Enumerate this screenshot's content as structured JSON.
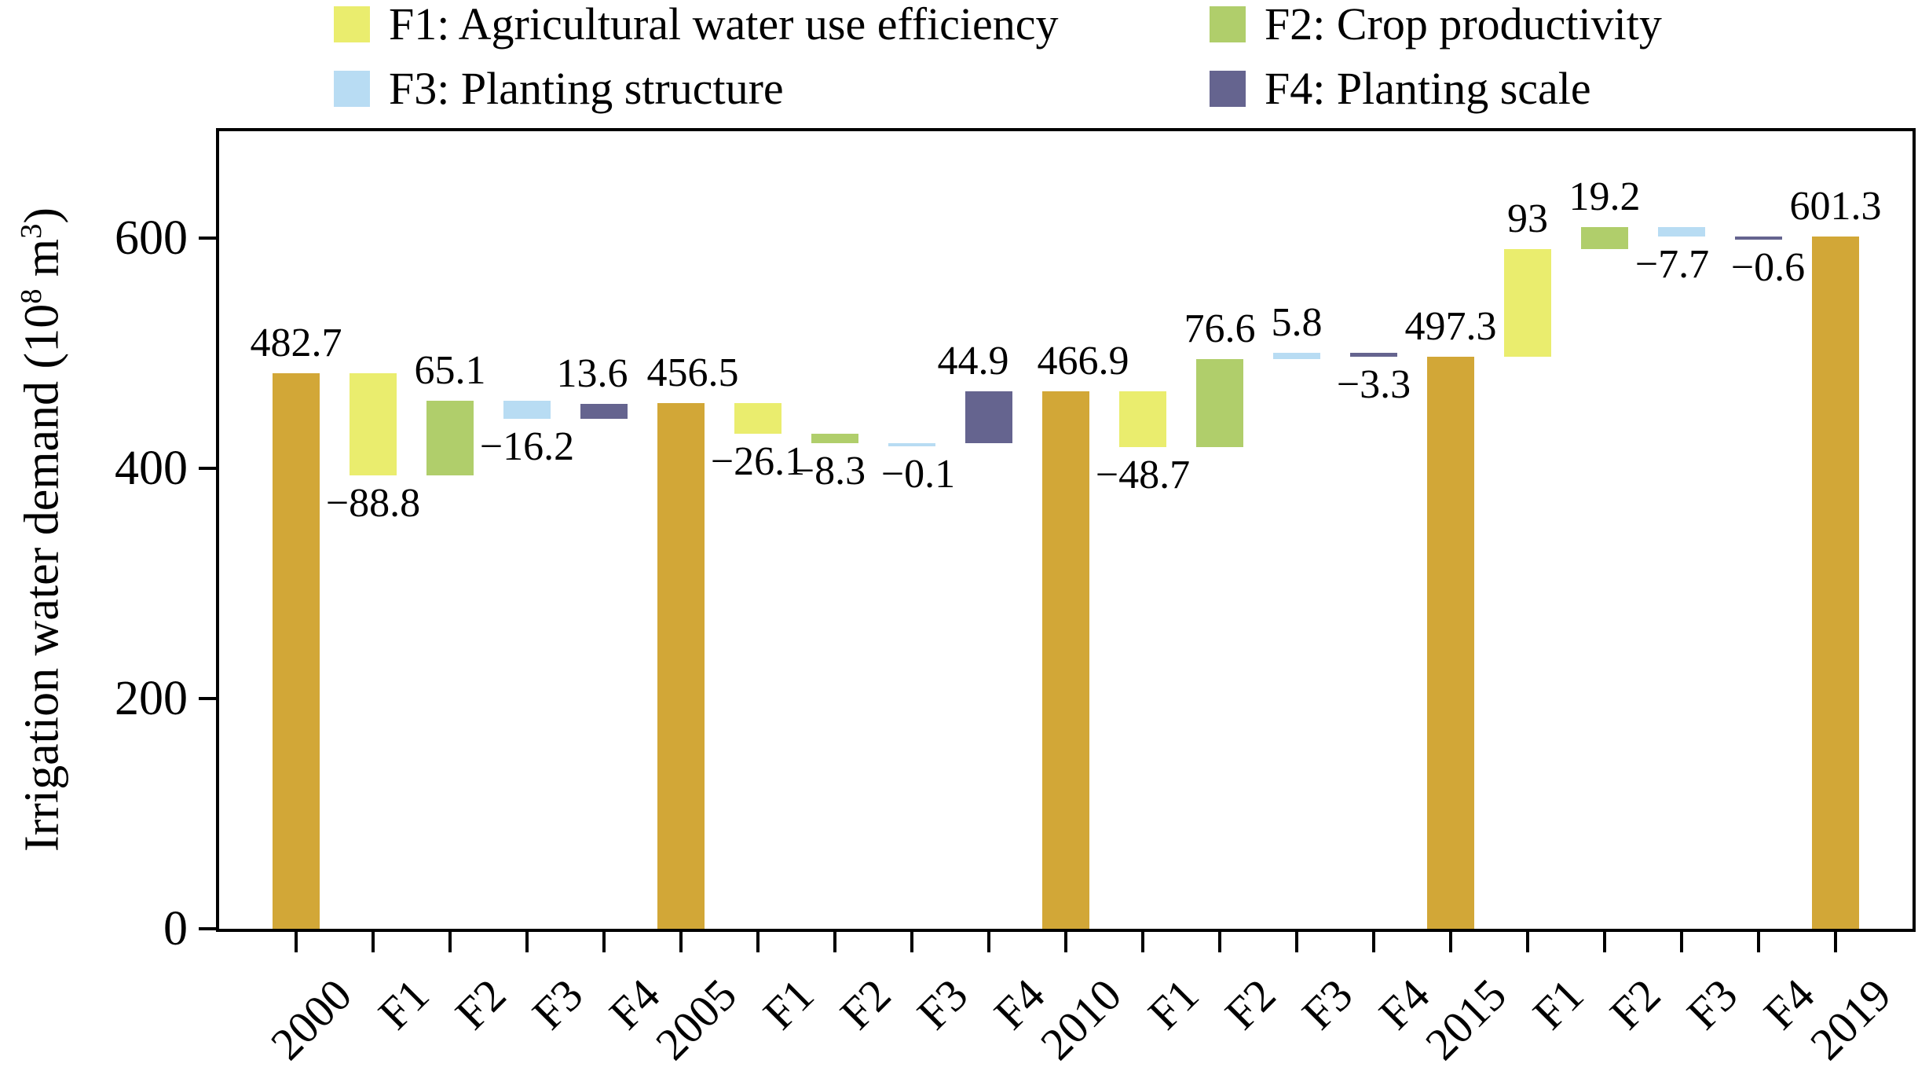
{
  "legend": {
    "items": [
      {
        "id": "F1",
        "label": "F1: Agricultural water use efficiency",
        "color": "#EAED6E"
      },
      {
        "id": "F3",
        "label": "F3: Planting structure",
        "color": "#B8DCF3"
      },
      {
        "id": "F2",
        "label": "F2: Crop productivity",
        "color": "#B0CE6B"
      },
      {
        "id": "F4",
        "label": "F4: Planting scale",
        "color": "#65648F"
      }
    ]
  },
  "y_axis": {
    "title_main": "Irrigation water demand (10",
    "title_sup1": "8",
    "title_mid": " m",
    "title_sup2": "3",
    "title_end": ")",
    "tick_labels": [
      "0",
      "200",
      "400",
      "600"
    ],
    "tick_values": [
      0,
      200,
      400,
      600
    ]
  },
  "chart_data": {
    "type": "bar",
    "subtype": "waterfall",
    "title": "",
    "xlabel": "",
    "ylabel": "Irrigation water demand (10^8 m^3)",
    "ylim": [
      0,
      693
    ],
    "grid": false,
    "legend_position": "top",
    "colors": {
      "total": "#D2A737",
      "F1": "#EAED6E",
      "F2": "#B0CE6B",
      "F3": "#B8DCF3",
      "F4": "#65648F"
    },
    "categories": [
      "2000",
      "F1",
      "F2",
      "F3",
      "F4",
      "2005",
      "F1",
      "F2",
      "F3",
      "F4",
      "2010",
      "F1",
      "F2",
      "F3",
      "F4",
      "2015",
      "F1",
      "F2",
      "F3",
      "F4",
      "2019"
    ],
    "bars": [
      {
        "category": "2000",
        "kind": "total",
        "color_key": "total",
        "value": 482.7,
        "start": 0,
        "end": 482.7,
        "label": "482.7",
        "label_pos": "above",
        "dx": 0
      },
      {
        "category": "F1",
        "kind": "delta",
        "color_key": "F1",
        "value": -88.8,
        "start": 482.7,
        "end": 393.9,
        "label": "−88.8",
        "label_pos": "below",
        "dx": 0
      },
      {
        "category": "F2",
        "kind": "delta",
        "color_key": "F2",
        "value": 65.1,
        "start": 393.9,
        "end": 459.0,
        "label": "65.1",
        "label_pos": "above",
        "dx": 0
      },
      {
        "category": "F3",
        "kind": "delta",
        "color_key": "F3",
        "value": -16.2,
        "start": 459.0,
        "end": 442.8,
        "label": "−16.2",
        "label_pos": "below",
        "dx": 0
      },
      {
        "category": "F4",
        "kind": "delta",
        "color_key": "F4",
        "value": 13.6,
        "start": 442.8,
        "end": 456.4,
        "label": "13.6",
        "label_pos": "above",
        "dx": -15
      },
      {
        "category": "2005",
        "kind": "total",
        "color_key": "total",
        "value": 456.5,
        "start": 0,
        "end": 456.5,
        "label": "456.5",
        "label_pos": "above",
        "dx": 15
      },
      {
        "category": "F1",
        "kind": "delta",
        "color_key": "F1",
        "value": -26.1,
        "start": 456.5,
        "end": 430.4,
        "label": "−26.1",
        "label_pos": "below",
        "dx": 0
      },
      {
        "category": "F2",
        "kind": "delta",
        "color_key": "F2",
        "value": -8.3,
        "start": 430.4,
        "end": 422.1,
        "label": "−8.3",
        "label_pos": "below",
        "dx": -8
      },
      {
        "category": "F3",
        "kind": "delta",
        "color_key": "F3",
        "value": -0.1,
        "start": 422.1,
        "end": 422.0,
        "label": "−0.1",
        "label_pos": "below",
        "dx": 8
      },
      {
        "category": "F4",
        "kind": "delta",
        "color_key": "F4",
        "value": 44.9,
        "start": 422.0,
        "end": 466.9,
        "label": "44.9",
        "label_pos": "above",
        "dx": -20
      },
      {
        "category": "2010",
        "kind": "total",
        "color_key": "total",
        "value": 466.9,
        "start": 0,
        "end": 466.9,
        "label": "466.9",
        "label_pos": "above",
        "dx": 22
      },
      {
        "category": "F1",
        "kind": "delta",
        "color_key": "F1",
        "value": -48.7,
        "start": 466.9,
        "end": 418.2,
        "label": "−48.7",
        "label_pos": "below",
        "dx": 0
      },
      {
        "category": "F2",
        "kind": "delta",
        "color_key": "F2",
        "value": 76.6,
        "start": 418.2,
        "end": 494.8,
        "label": "76.6",
        "label_pos": "above",
        "dx": 0
      },
      {
        "category": "F3",
        "kind": "delta",
        "color_key": "F3",
        "value": 5.8,
        "start": 494.8,
        "end": 500.6,
        "label": "5.8",
        "label_pos": "above",
        "dx": 0
      },
      {
        "category": "F4",
        "kind": "delta",
        "color_key": "F4",
        "value": -3.3,
        "start": 500.6,
        "end": 497.3,
        "label": "−3.3",
        "label_pos": "below",
        "dx": 0
      },
      {
        "category": "2015",
        "kind": "total",
        "color_key": "total",
        "value": 497.3,
        "start": 0,
        "end": 497.3,
        "label": "497.3",
        "label_pos": "above",
        "dx": 0
      },
      {
        "category": "F1",
        "kind": "delta",
        "color_key": "F1",
        "value": 93,
        "start": 497.3,
        "end": 590.3,
        "label": "93",
        "label_pos": "above",
        "dx": 0
      },
      {
        "category": "F2",
        "kind": "delta",
        "color_key": "F2",
        "value": 19.2,
        "start": 590.3,
        "end": 609.5,
        "label": "19.2",
        "label_pos": "above",
        "dx": 0
      },
      {
        "category": "F3",
        "kind": "delta",
        "color_key": "F3",
        "value": -7.7,
        "start": 609.5,
        "end": 601.8,
        "label": "−7.7",
        "label_pos": "below",
        "dx": -12
      },
      {
        "category": "F4",
        "kind": "delta",
        "color_key": "F4",
        "value": -0.6,
        "start": 601.8,
        "end": 601.2,
        "label": "−0.6",
        "label_pos": "below",
        "dx": 12
      },
      {
        "category": "2019",
        "kind": "total",
        "color_key": "total",
        "value": 601.3,
        "start": 0,
        "end": 601.3,
        "label": "601.3",
        "label_pos": "above",
        "dx": 0
      }
    ]
  }
}
